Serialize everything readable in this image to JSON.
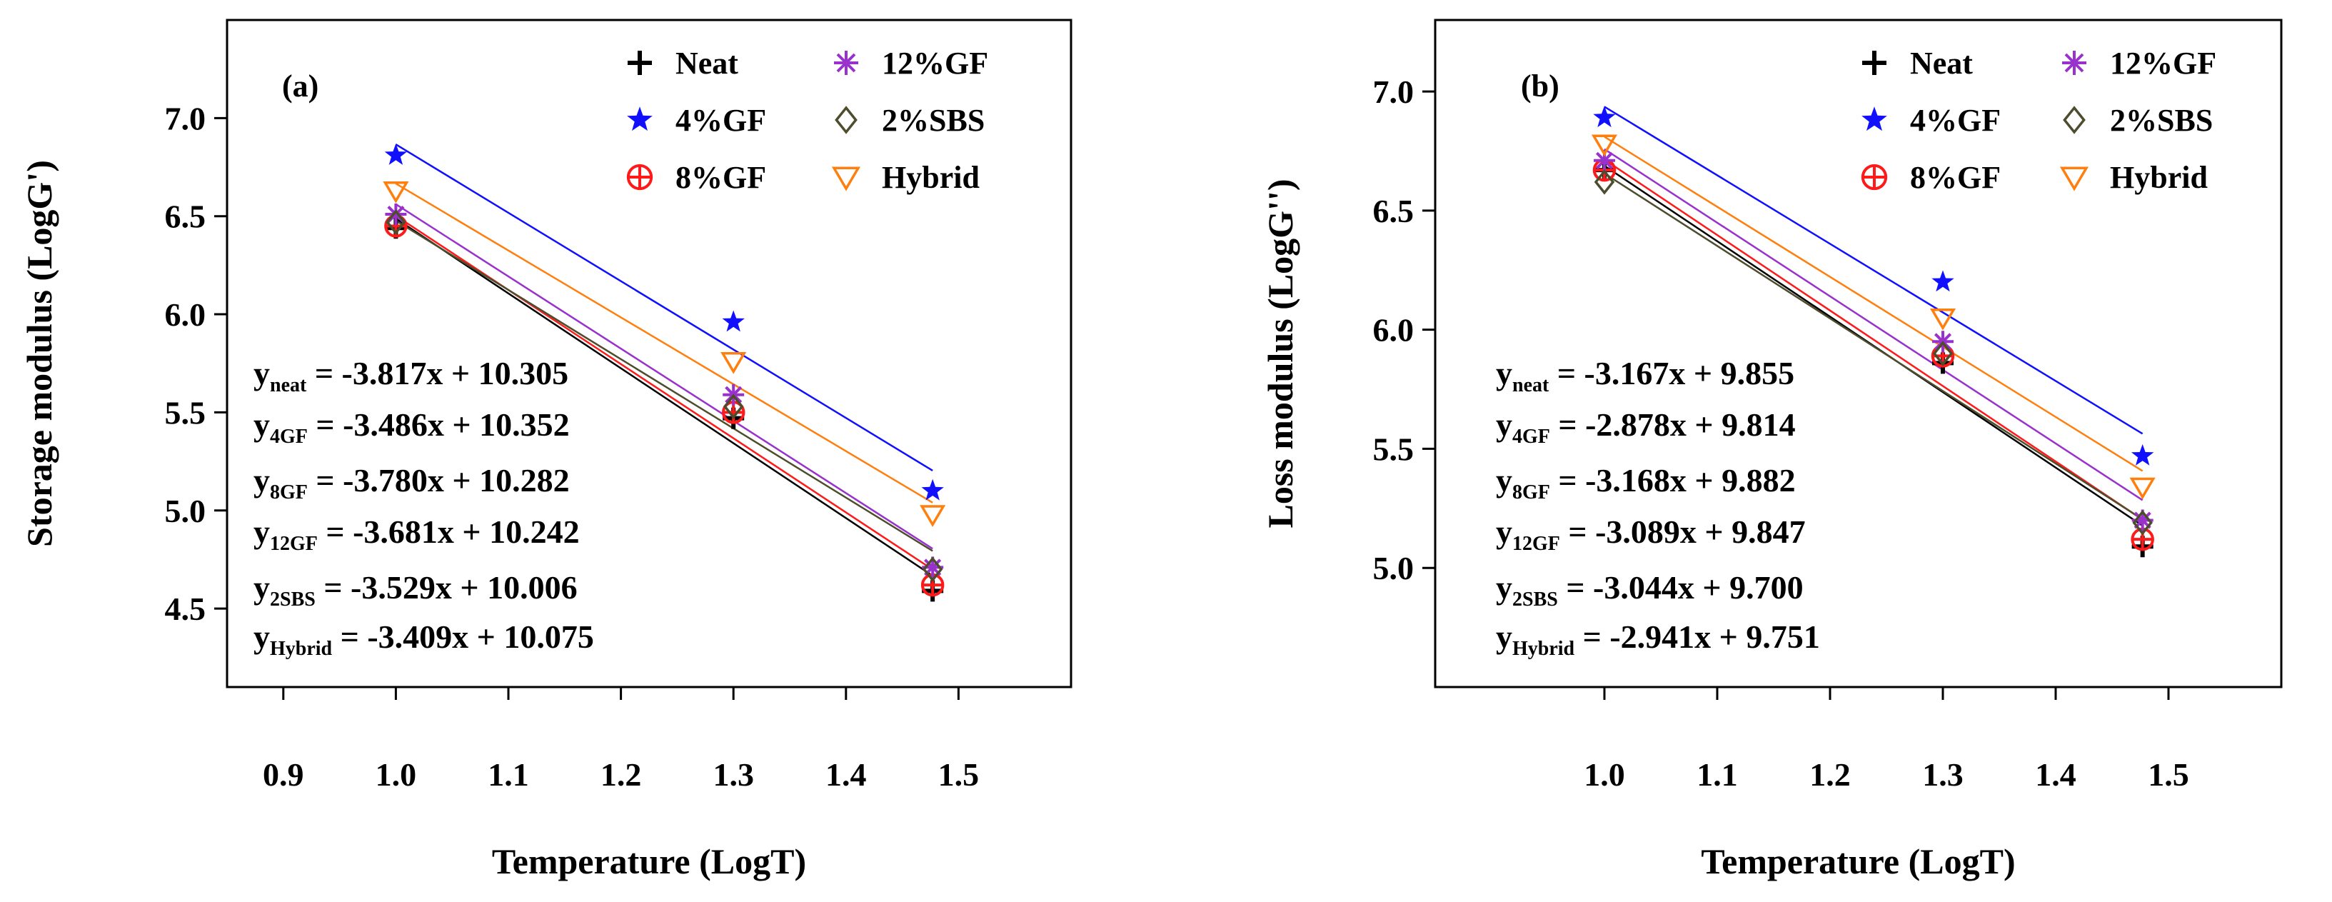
{
  "chart_data": [
    {
      "type": "scatter",
      "panel_label": "(a)",
      "xlabel": "Temperature (LogT)",
      "ylabel": "Storage modulus (LogG')",
      "xlim": [
        0.85,
        1.6
      ],
      "ylim": [
        4.1,
        7.5
      ],
      "x_ticks": [
        "0.9",
        "1.0",
        "1.1",
        "1.2",
        "1.3",
        "1.4",
        "1.5"
      ],
      "x_tick_values": [
        0.9,
        1.0,
        1.1,
        1.2,
        1.3,
        1.4,
        1.5
      ],
      "y_ticks": [
        "4.5",
        "5.0",
        "5.5",
        "6.0",
        "6.5",
        "7.0"
      ],
      "y_tick_values": [
        4.5,
        5.0,
        5.5,
        6.0,
        6.5,
        7.0
      ],
      "grid": false,
      "legend_position": "top-right",
      "x": [
        1.0,
        1.3,
        1.477
      ],
      "series": [
        {
          "name": "Neat",
          "marker": "plus",
          "color": "#000000",
          "values": [
            6.44,
            5.47,
            4.59
          ],
          "fit": {
            "slope": -3.817,
            "intercept": 10.305
          }
        },
        {
          "name": "4%GF",
          "marker": "star",
          "color": "#1010ff",
          "values": [
            6.81,
            5.96,
            5.1
          ],
          "fit": {
            "slope": -3.486,
            "intercept": 10.352
          }
        },
        {
          "name": "8%GF",
          "marker": "circle-plus",
          "color": "#ff1a1a",
          "values": [
            6.45,
            5.5,
            4.62
          ],
          "fit": {
            "slope": -3.78,
            "intercept": 10.282
          }
        },
        {
          "name": "12%GF",
          "marker": "asterisk",
          "color": "#9932cc",
          "values": [
            6.51,
            5.59,
            4.71
          ],
          "fit": {
            "slope": -3.681,
            "intercept": 10.242
          }
        },
        {
          "name": "2%SBS",
          "marker": "diamond",
          "color": "#4d4d2e",
          "values": [
            6.47,
            5.53,
            4.7
          ],
          "fit": {
            "slope": -3.529,
            "intercept": 10.006
          }
        },
        {
          "name": "Hybrid",
          "marker": "triangle-down",
          "color": "#ff7f0e",
          "values": [
            6.63,
            5.76,
            4.98
          ],
          "fit": {
            "slope": -3.409,
            "intercept": 10.075
          }
        }
      ],
      "equations": [
        {
          "base": "y",
          "sub": "neat",
          "rhs": " = -3.817x + 10.305"
        },
        {
          "base": "y",
          "sub": "4GF",
          "rhs": " = -3.486x + 10.352"
        },
        {
          "base": "y",
          "sub": "8GF",
          "rhs": " = -3.780x + 10.282"
        },
        {
          "base": "y",
          "sub": "12GF",
          "rhs": " = -3.681x + 10.242"
        },
        {
          "base": "y",
          "sub": "2SBS",
          "rhs": " = -3.529x + 10.006"
        },
        {
          "base": "y",
          "sub": "Hybrid",
          "rhs": " = -3.409x + 10.075"
        }
      ]
    },
    {
      "type": "scatter",
      "panel_label": "(b)",
      "xlabel": "Temperature (LogT)",
      "ylabel": "Loss modulus (LogG'')",
      "xlim": [
        0.85,
        1.6
      ],
      "ylim": [
        4.5,
        7.3
      ],
      "x_ticks": [
        "1.0",
        "1.1",
        "1.2",
        "1.3",
        "1.4",
        "1.5"
      ],
      "x_tick_values": [
        1.0,
        1.1,
        1.2,
        1.3,
        1.4,
        1.5
      ],
      "y_ticks": [
        "5.0",
        "5.5",
        "6.0",
        "6.5",
        "7.0"
      ],
      "y_tick_values": [
        5.0,
        5.5,
        6.0,
        6.5,
        7.0
      ],
      "grid": false,
      "legend_position": "top-right",
      "x": [
        1.0,
        1.3,
        1.477
      ],
      "series": [
        {
          "name": "Neat",
          "marker": "plus",
          "color": "#000000",
          "values": [
            6.67,
            5.86,
            5.09
          ],
          "fit": {
            "slope": -3.167,
            "intercept": 9.855
          }
        },
        {
          "name": "4%GF",
          "marker": "star",
          "color": "#1010ff",
          "values": [
            6.89,
            6.2,
            5.47
          ],
          "fit": {
            "slope": -2.878,
            "intercept": 9.814
          }
        },
        {
          "name": "8%GF",
          "marker": "circle-plus",
          "color": "#ff1a1a",
          "values": [
            6.67,
            5.89,
            5.12
          ],
          "fit": {
            "slope": -3.168,
            "intercept": 9.882
          }
        },
        {
          "name": "12%GF",
          "marker": "asterisk",
          "color": "#9932cc",
          "values": [
            6.71,
            5.95,
            5.2
          ],
          "fit": {
            "slope": -3.089,
            "intercept": 9.847
          }
        },
        {
          "name": "2%SBS",
          "marker": "diamond",
          "color": "#4d4d2e",
          "values": [
            6.62,
            5.9,
            5.19
          ],
          "fit": {
            "slope": -3.044,
            "intercept": 9.7
          }
        },
        {
          "name": "Hybrid",
          "marker": "triangle-down",
          "color": "#ff7f0e",
          "values": [
            6.78,
            6.05,
            5.34
          ],
          "fit": {
            "slope": -2.941,
            "intercept": 9.751
          }
        }
      ],
      "equations": [
        {
          "base": "y",
          "sub": "neat",
          "rhs": " = -3.167x + 9.855"
        },
        {
          "base": "y",
          "sub": "4GF",
          "rhs": " = -2.878x + 9.814"
        },
        {
          "base": "y",
          "sub": "8GF",
          "rhs": " = -3.168x + 9.882"
        },
        {
          "base": "y",
          "sub": "12GF",
          "rhs": " = -3.089x + 9.847"
        },
        {
          "base": "y",
          "sub": "2SBS",
          "rhs": " = -3.044x + 9.700"
        },
        {
          "base": "y",
          "sub": "Hybrid",
          "rhs": " = -2.941x + 9.751"
        }
      ]
    }
  ]
}
